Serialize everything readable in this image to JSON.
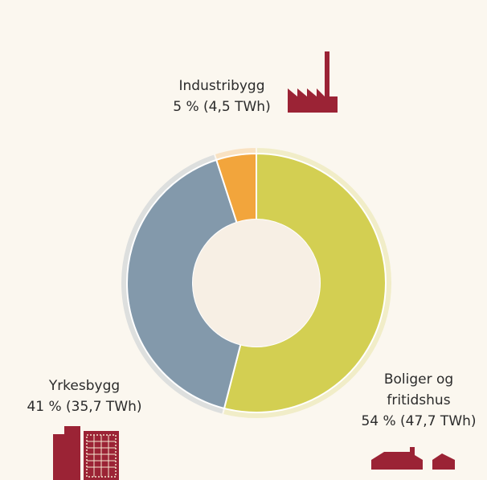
{
  "chart_data": {
    "type": "donut",
    "categories": [
      "Boliger og fritidshus",
      "Yrkesbygg",
      "Industribygg"
    ],
    "values": [
      54,
      41,
      5
    ],
    "value_labels": [
      "54 % (47,7 TWh)",
      "41 % (35,7 TWh)",
      "5 % (4,5 TWh)"
    ],
    "colors": [
      "#d3cf52",
      "#8399ab",
      "#f2a53c"
    ]
  }
}
